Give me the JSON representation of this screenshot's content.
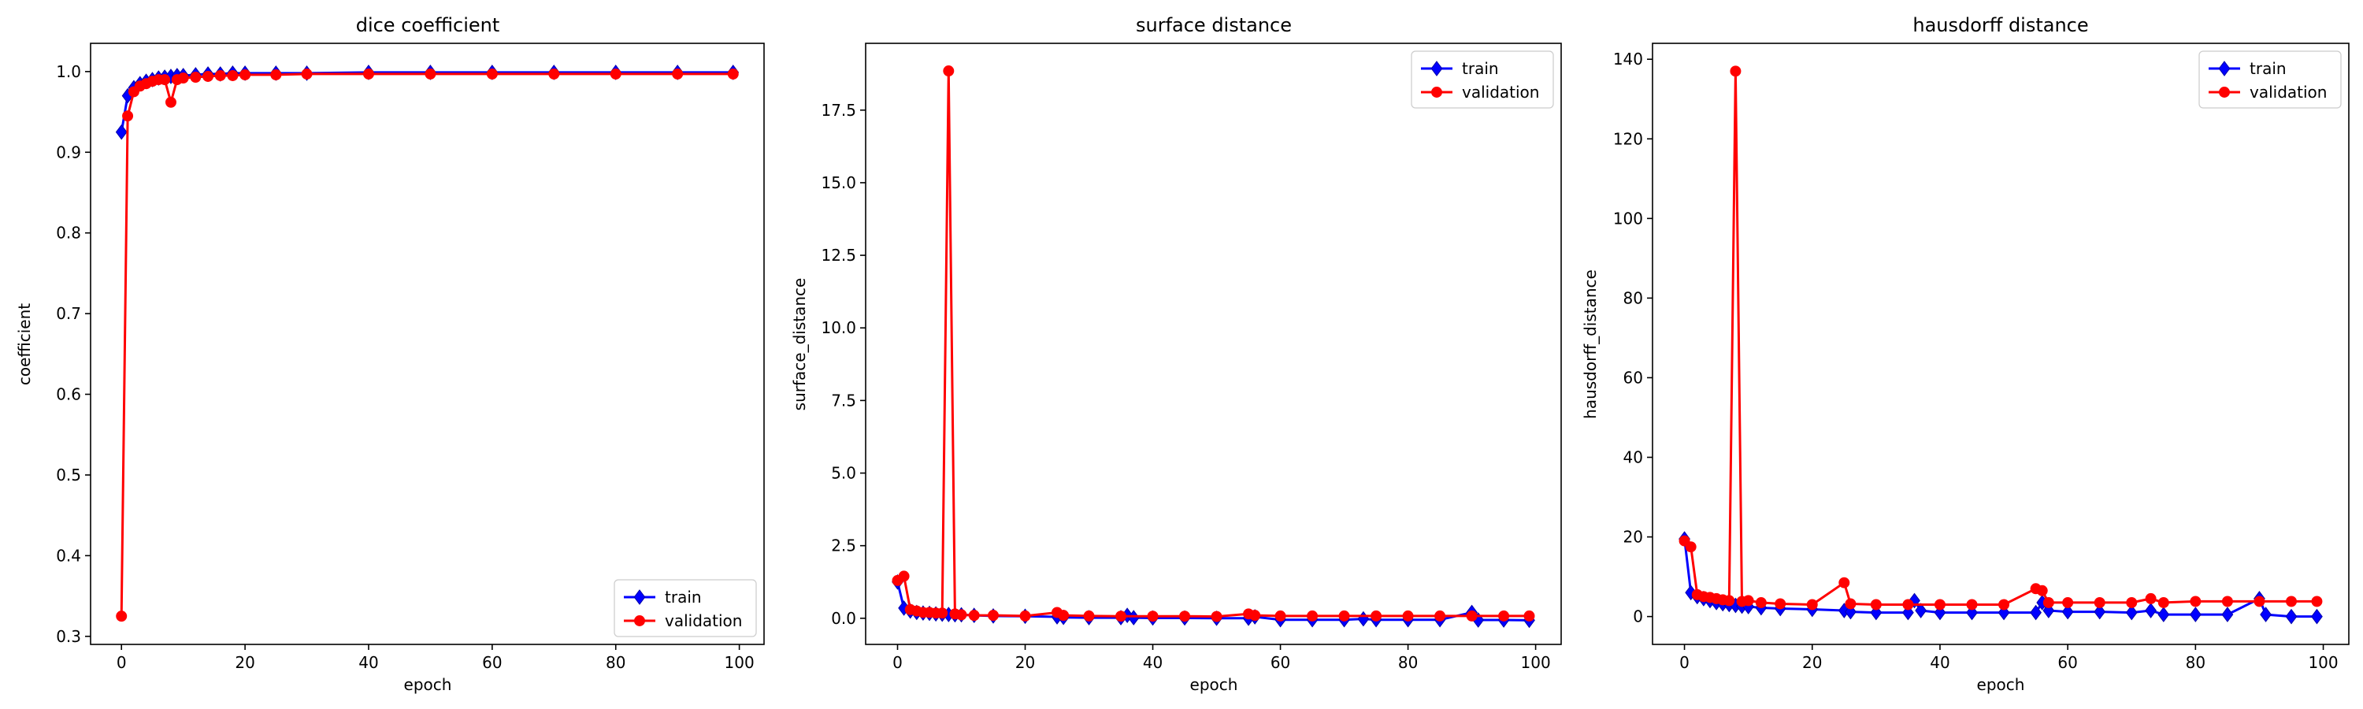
{
  "colors": {
    "train": "#0000ff",
    "validation": "#ff0000",
    "marker_edge_train": "#0000aa",
    "axes": "#000000"
  },
  "chart_data": [
    {
      "type": "line",
      "title": "dice coefficient",
      "xlabel": "epoch",
      "ylabel": "coefficient",
      "xlim": [
        -5,
        104
      ],
      "ylim": [
        0.29,
        1.035
      ],
      "xticks": [
        0,
        20,
        40,
        60,
        80,
        100
      ],
      "xtick_labels": [
        "0",
        "20",
        "40",
        "60",
        "80",
        "100"
      ],
      "yticks": [
        0.3,
        0.4,
        0.5,
        0.6,
        0.7,
        0.8,
        0.9,
        1.0
      ],
      "ytick_labels": [
        "0.3",
        "0.4",
        "0.5",
        "0.6",
        "0.7",
        "0.8",
        "0.9",
        "1.0"
      ],
      "legend": "lower-right",
      "series": [
        {
          "name": "train",
          "marker": "diamond",
          "color": "#0000ff",
          "x": [
            0,
            1,
            2,
            3,
            4,
            5,
            6,
            7,
            8,
            9,
            10,
            12,
            14,
            16,
            18,
            20,
            25,
            30,
            40,
            50,
            60,
            70,
            80,
            90,
            99
          ],
          "y": [
            0.925,
            0.97,
            0.98,
            0.985,
            0.988,
            0.99,
            0.992,
            0.993,
            0.994,
            0.995,
            0.995,
            0.996,
            0.997,
            0.997,
            0.998,
            0.998,
            0.998,
            0.998,
            0.999,
            0.999,
            0.999,
            0.999,
            0.999,
            0.999,
            0.999
          ]
        },
        {
          "name": "validation",
          "marker": "circle",
          "color": "#ff0000",
          "x": [
            0,
            1,
            2,
            3,
            4,
            5,
            6,
            7,
            8,
            9,
            10,
            12,
            14,
            16,
            18,
            20,
            25,
            30,
            40,
            50,
            60,
            70,
            80,
            90,
            99
          ],
          "y": [
            0.325,
            0.945,
            0.975,
            0.982,
            0.985,
            0.988,
            0.99,
            0.99,
            0.962,
            0.99,
            0.992,
            0.993,
            0.994,
            0.995,
            0.995,
            0.996,
            0.996,
            0.997,
            0.997,
            0.997,
            0.997,
            0.997,
            0.997,
            0.997,
            0.997
          ]
        }
      ]
    },
    {
      "type": "line",
      "title": "surface distance",
      "xlabel": "epoch",
      "ylabel": "surface_distance",
      "xlim": [
        -5,
        104
      ],
      "ylim": [
        -0.9,
        19.8
      ],
      "xticks": [
        0,
        20,
        40,
        60,
        80,
        100
      ],
      "xtick_labels": [
        "0",
        "20",
        "40",
        "60",
        "80",
        "100"
      ],
      "yticks": [
        0.0,
        2.5,
        5.0,
        7.5,
        10.0,
        12.5,
        15.0,
        17.5
      ],
      "ytick_labels": [
        "0.0",
        "2.5",
        "5.0",
        "7.5",
        "10.0",
        "12.5",
        "15.0",
        "17.5"
      ],
      "legend": "top-right",
      "series": [
        {
          "name": "train",
          "marker": "diamond",
          "color": "#0000ff",
          "x": [
            0,
            1,
            2,
            3,
            4,
            5,
            6,
            7,
            8,
            9,
            10,
            12,
            15,
            20,
            25,
            26,
            30,
            35,
            36,
            37,
            40,
            45,
            50,
            55,
            56,
            60,
            65,
            70,
            73,
            75,
            80,
            85,
            90,
            91,
            95,
            99
          ],
          "y": [
            1.25,
            0.35,
            0.25,
            0.2,
            0.18,
            0.17,
            0.15,
            0.14,
            0.13,
            0.12,
            0.12,
            0.1,
            0.08,
            0.07,
            0.05,
            0.03,
            0.02,
            0.02,
            0.1,
            0.02,
            0.01,
            0.01,
            0.0,
            0.0,
            0.05,
            -0.05,
            -0.05,
            -0.05,
            -0.02,
            -0.05,
            -0.05,
            -0.05,
            0.2,
            -0.06,
            -0.06,
            -0.07
          ]
        },
        {
          "name": "validation",
          "marker": "circle",
          "color": "#ff0000",
          "x": [
            0,
            1,
            2,
            3,
            4,
            5,
            6,
            7,
            8,
            9,
            10,
            12,
            15,
            20,
            25,
            26,
            30,
            35,
            40,
            45,
            50,
            55,
            56,
            60,
            65,
            70,
            75,
            80,
            85,
            90,
            95,
            99
          ],
          "y": [
            1.3,
            1.45,
            0.3,
            0.25,
            0.2,
            0.2,
            0.18,
            0.18,
            18.85,
            0.15,
            0.12,
            0.1,
            0.1,
            0.08,
            0.2,
            0.1,
            0.08,
            0.07,
            0.07,
            0.07,
            0.06,
            0.15,
            0.1,
            0.08,
            0.08,
            0.08,
            0.08,
            0.08,
            0.08,
            0.08,
            0.08,
            0.08
          ]
        }
      ]
    },
    {
      "type": "line",
      "title": "hausdorff distance",
      "xlabel": "epoch",
      "ylabel": "hausdorff_distance",
      "xlim": [
        -5,
        104
      ],
      "ylim": [
        -7,
        144
      ],
      "xticks": [
        0,
        20,
        40,
        60,
        80,
        100
      ],
      "xtick_labels": [
        "0",
        "20",
        "40",
        "60",
        "80",
        "100"
      ],
      "yticks": [
        0,
        20,
        40,
        60,
        80,
        100,
        120,
        140
      ],
      "ytick_labels": [
        "0",
        "20",
        "40",
        "60",
        "80",
        "100",
        "120",
        "140"
      ],
      "legend": "top-right",
      "series": [
        {
          "name": "train",
          "marker": "diamond",
          "color": "#0000ff",
          "x": [
            0,
            1,
            2,
            3,
            4,
            5,
            6,
            7,
            8,
            9,
            10,
            12,
            15,
            20,
            25,
            26,
            30,
            35,
            36,
            37,
            40,
            45,
            50,
            55,
            56,
            57,
            60,
            65,
            70,
            73,
            75,
            80,
            85,
            90,
            91,
            95,
            99
          ],
          "y": [
            19.5,
            6,
            5,
            4.5,
            4,
            3.5,
            3.2,
            3,
            2.8,
            2.6,
            2.5,
            2.2,
            2,
            1.8,
            1.5,
            1.2,
            1,
            1,
            4,
            1.5,
            1,
            1,
            1,
            1,
            3.5,
            1.5,
            1.2,
            1.2,
            1,
            1.5,
            0.5,
            0.5,
            0.5,
            4.5,
            0.5,
            0,
            0
          ]
        },
        {
          "name": "validation",
          "marker": "circle",
          "color": "#ff0000",
          "x": [
            0,
            1,
            2,
            3,
            4,
            5,
            6,
            7,
            8,
            9,
            10,
            12,
            15,
            20,
            25,
            26,
            30,
            35,
            40,
            45,
            50,
            55,
            56,
            57,
            60,
            65,
            70,
            73,
            75,
            80,
            85,
            90,
            95,
            99
          ],
          "y": [
            19,
            17.5,
            5.5,
            5,
            4.8,
            4.5,
            4.2,
            4,
            137,
            3.8,
            4,
            3.5,
            3.2,
            3,
            8.5,
            3.2,
            3,
            3,
            3,
            3,
            3,
            7,
            6.5,
            3.5,
            3.5,
            3.5,
            3.5,
            4.5,
            3.5,
            3.8,
            3.8,
            3.8,
            3.8,
            3.8
          ]
        }
      ]
    }
  ]
}
